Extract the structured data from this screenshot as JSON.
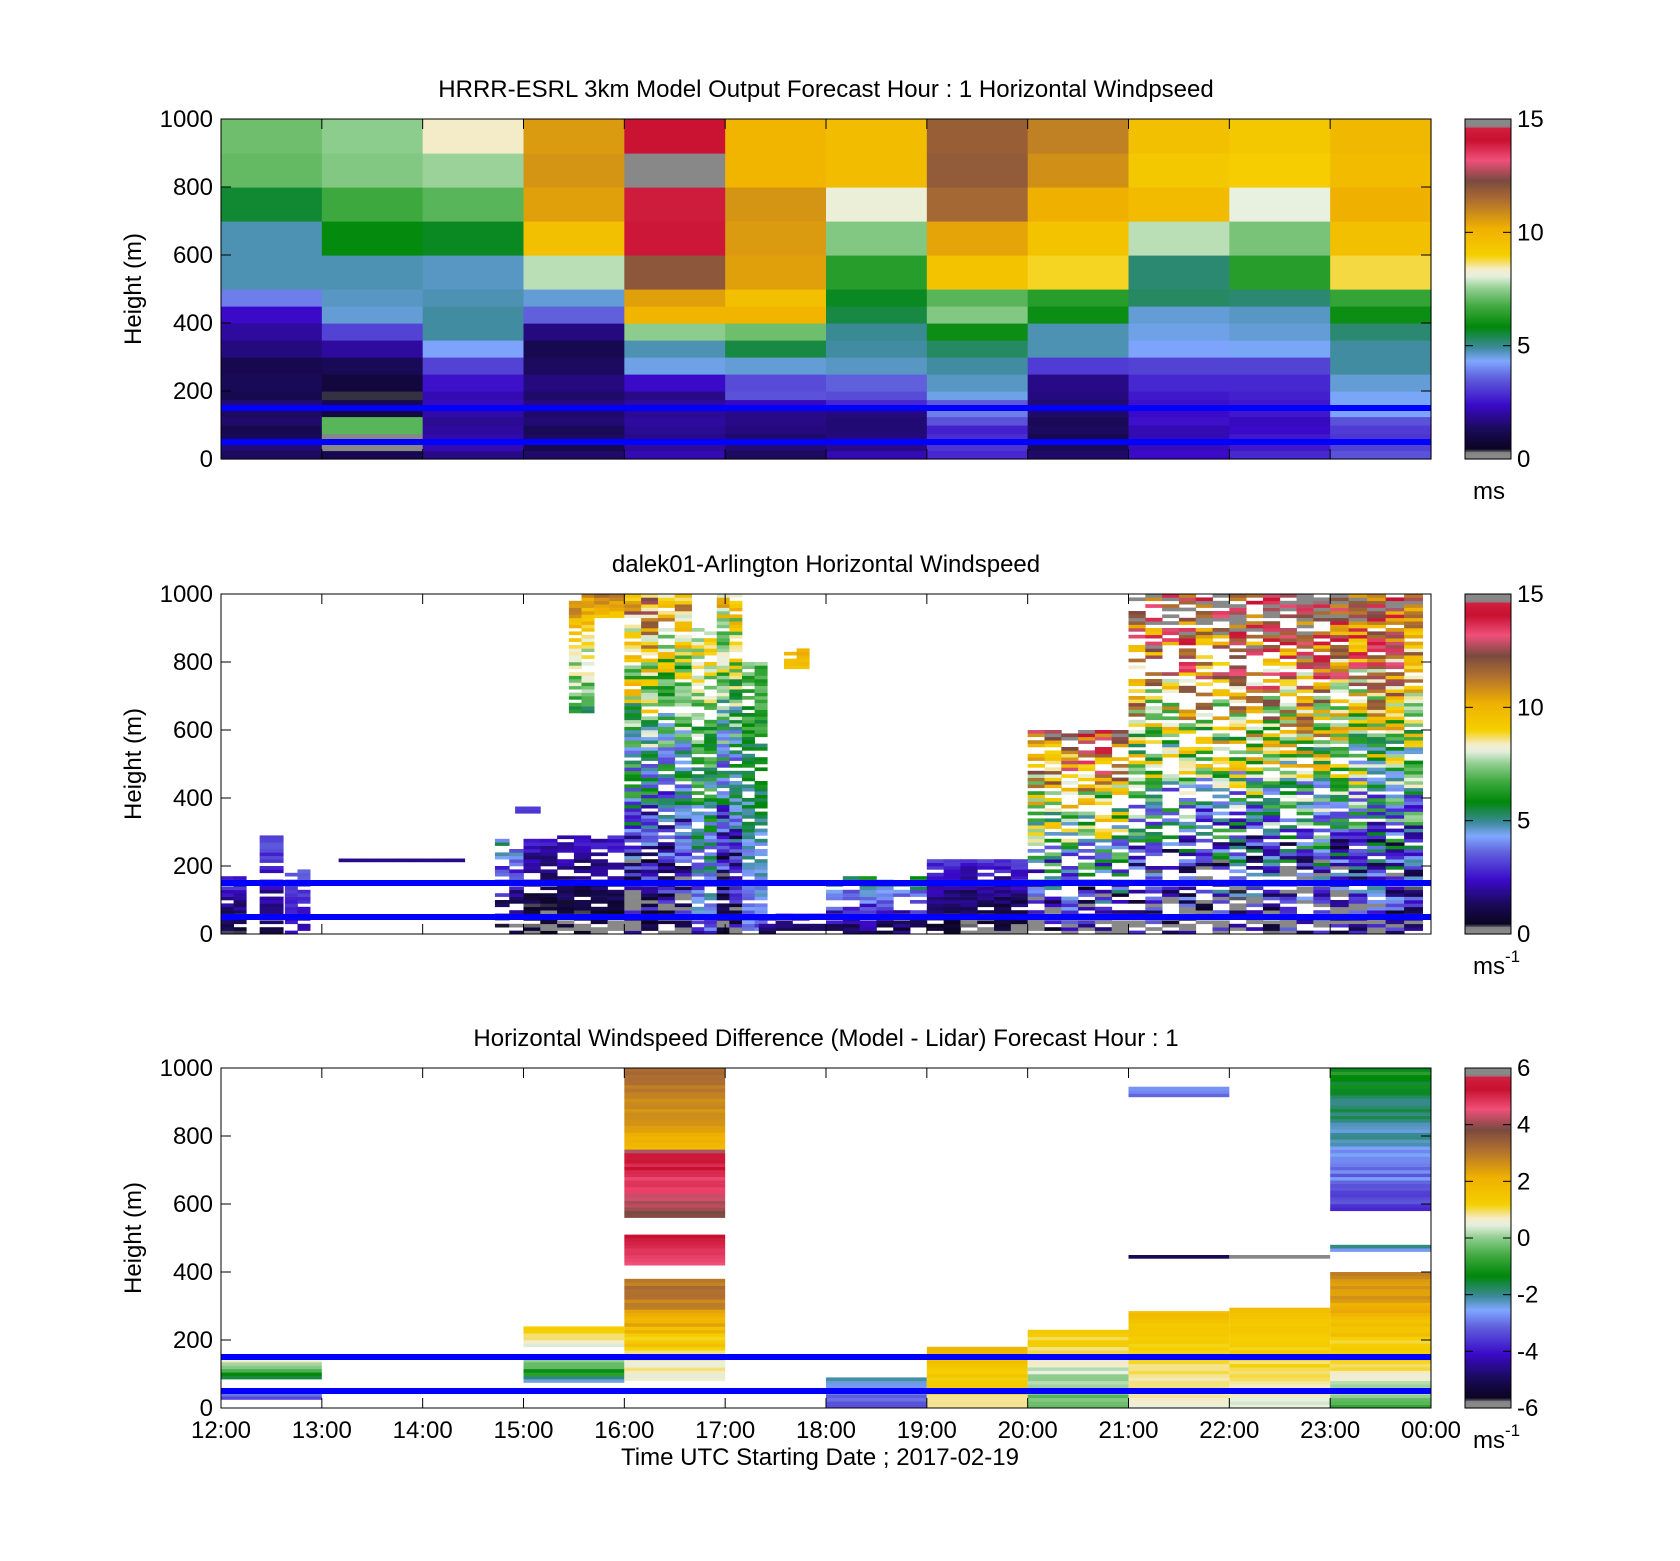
{
  "figure": {
    "xlabel": "Time UTC  Starting Date ; 2017-02-19"
  },
  "chart_data": [
    {
      "type": "heatmap",
      "title": "HRRR-ESRL 3km Model Output   Forecast Hour : 1 Horizontal Windpseed",
      "ylabel": "Height (m)",
      "unit": "ms",
      "ylim": [
        0,
        1000
      ],
      "yticks": [
        "0",
        "200",
        "400",
        "600",
        "800",
        "1000"
      ],
      "xticks": [
        "12:00",
        "13:00",
        "14:00",
        "15:00",
        "16:00",
        "17:00",
        "18:00",
        "19:00",
        "20:00",
        "21:00",
        "22:00",
        "23:00",
        "00:00"
      ],
      "xticks_labeled": false,
      "clim": [
        0,
        15
      ],
      "cticks": [
        "0",
        "5",
        "10",
        "15"
      ],
      "colormap": "wind",
      "hlines": [
        150,
        50
      ],
      "hline_color": "#0000ff",
      "hour_starts": [
        0,
        1,
        2,
        3,
        4,
        5,
        6,
        7,
        8,
        9,
        10,
        11
      ],
      "level_edges": [
        0,
        25,
        50,
        75,
        100,
        125,
        150,
        175,
        200,
        250,
        300,
        350,
        400,
        450,
        500,
        600,
        700,
        800,
        900,
        1000
      ],
      "values": [
        [
          1.4,
          1.2,
          1.8,
          1.5,
          2.2,
          1.4,
          2.2,
          2.8,
          1.5,
          2.4,
          2.8,
          3.4
        ],
        [
          1.6,
          0.3,
          2.2,
          1.2,
          2.0,
          1.6,
          1.8,
          3.0,
          1.3,
          2.3,
          2.6,
          3.2
        ],
        [
          1.3,
          0.3,
          2.1,
          1.4,
          1.8,
          1.5,
          1.7,
          2.9,
          1.2,
          2.2,
          2.6,
          3.0
        ],
        [
          1.2,
          7.0,
          2.0,
          1.3,
          1.9,
          1.7,
          1.6,
          2.7,
          1.4,
          2.2,
          2.4,
          3.1
        ],
        [
          1.5,
          7.0,
          1.9,
          1.6,
          2.0,
          1.8,
          1.6,
          3.4,
          1.3,
          2.5,
          2.3,
          3.4
        ],
        [
          1.4,
          1.0,
          2.1,
          1.5,
          1.9,
          1.8,
          1.7,
          3.9,
          1.5,
          2.4,
          2.6,
          4.3
        ],
        [
          1.6,
          1.2,
          2.3,
          1.7,
          2.0,
          2.3,
          2.8,
          3.5,
          1.6,
          2.5,
          2.6,
          4.4
        ],
        [
          1.2,
          0.4,
          2.2,
          1.5,
          1.8,
          3.4,
          3.3,
          4.5,
          1.7,
          2.6,
          2.7,
          4.4
        ],
        [
          1.3,
          0.9,
          2.5,
          1.7,
          2.4,
          3.3,
          3.6,
          4.7,
          1.8,
          2.8,
          2.8,
          4.6
        ],
        [
          1.2,
          1.3,
          3.2,
          1.4,
          4.5,
          4.6,
          4.7,
          4.9,
          3.1,
          3.2,
          3.2,
          4.9
        ],
        [
          1.7,
          2.0,
          4.3,
          1.2,
          4.8,
          5.5,
          4.9,
          5.3,
          4.8,
          4.3,
          4.4,
          4.9
        ],
        [
          2.0,
          3.2,
          4.9,
          1.7,
          7.5,
          7.2,
          5.0,
          6.0,
          4.8,
          4.5,
          4.6,
          5.2
        ],
        [
          2.4,
          4.6,
          4.9,
          3.6,
          10.0,
          10.0,
          5.5,
          7.4,
          6.0,
          4.6,
          4.7,
          6.0
        ],
        [
          3.9,
          4.7,
          4.8,
          4.6,
          10.5,
          9.6,
          5.7,
          7.0,
          6.4,
          5.3,
          5.2,
          6.6
        ],
        [
          4.8,
          4.8,
          4.7,
          7.8,
          12.0,
          10.5,
          6.4,
          9.5,
          8.9,
          5.2,
          6.4,
          8.8
        ],
        [
          4.8,
          5.9,
          5.7,
          9.6,
          14.0,
          10.6,
          7.4,
          10.4,
          9.5,
          7.8,
          7.3,
          9.6
        ],
        [
          5.6,
          6.7,
          7.0,
          10.5,
          14.5,
          10.7,
          8.2,
          11.6,
          10.2,
          9.8,
          8.1,
          10.2
        ],
        [
          7.1,
          7.4,
          7.6,
          10.7,
          14.8,
          10.0,
          9.7,
          11.9,
          10.8,
          9.3,
          9.1,
          9.8
        ],
        [
          7.2,
          7.5,
          8.4,
          10.6,
          14.2,
          10.0,
          9.7,
          11.8,
          11.1,
          9.6,
          9.3,
          9.9
        ]
      ]
    },
    {
      "type": "heatmap",
      "title": "dalek01-Arlington  Horizontal Windspeed",
      "ylabel": "Height (m)",
      "unit": "ms",
      "unit_exp": "-1",
      "ylim": [
        0,
        1000
      ],
      "yticks": [
        "0",
        "200",
        "400",
        "600",
        "800",
        "1000"
      ],
      "xticks": [
        "12:00",
        "13:00",
        "14:00",
        "15:00",
        "16:00",
        "17:00",
        "18:00",
        "19:00",
        "20:00",
        "21:00",
        "22:00",
        "23:00",
        "00:00"
      ],
      "xticks_labeled": false,
      "clim": [
        0,
        15
      ],
      "cticks": [
        "0",
        "5",
        "10",
        "15"
      ],
      "colormap": "wind",
      "hlines": [
        150,
        50
      ],
      "hline_color": "#0000ff",
      "observation_regions": [
        {
          "start": "12:00",
          "end": "12:15",
          "top_m": 170,
          "speed_range": [
            0.6,
            3.2
          ],
          "fill": 0.85
        },
        {
          "start": "12:23",
          "end": "12:37",
          "top_m": 290,
          "speed_range": [
            1.2,
            3.4
          ],
          "fill": 0.75
        },
        {
          "start": "12:38",
          "end": "12:53",
          "top_m": 185,
          "speed_range": [
            2.2,
            3.5
          ],
          "fill": 0.75
        },
        {
          "start": "13:10",
          "end": "14:25",
          "top_m": 222,
          "bottom_m": 212,
          "speed_range": [
            1.8,
            2.0
          ],
          "fill": 1.0
        },
        {
          "start": "14:55",
          "end": "15:10",
          "top_m": 370,
          "bottom_m": 355,
          "speed_range": [
            3.0,
            3.2
          ],
          "fill": 1.0
        },
        {
          "start": "14:43",
          "end": "15:00",
          "top_m": 280,
          "speed_range": [
            0.3,
            5.0
          ],
          "fill": 0.7
        },
        {
          "start": "15:00",
          "end": "16:00",
          "top_m": 290,
          "speed_range": [
            0.2,
            2.6
          ],
          "fill": 0.8
        },
        {
          "start": "15:27",
          "end": "15:42",
          "top_m": 1000,
          "bottom_m": 650,
          "speed_range": [
            6.0,
            11.0
          ],
          "fill": 0.8
        },
        {
          "start": "15:42",
          "end": "16:00",
          "top_m": 1000,
          "bottom_m": 930,
          "speed_range": [
            9.5,
            11.5
          ],
          "fill": 0.9
        },
        {
          "start": "16:00",
          "end": "16:20",
          "top_m": 1000,
          "speed_range": [
            0.3,
            11.0
          ],
          "fill": 0.92
        },
        {
          "start": "16:20",
          "end": "16:40",
          "top_m": 1000,
          "speed_range": [
            0.5,
            10.0
          ],
          "fill": 0.85
        },
        {
          "start": "16:40",
          "end": "16:55",
          "top_m": 900,
          "speed_range": [
            3.0,
            9.0
          ],
          "fill": 0.75
        },
        {
          "start": "16:55",
          "end": "17:10",
          "top_m": 1000,
          "speed_range": [
            0.5,
            9.5
          ],
          "fill": 0.9
        },
        {
          "start": "17:10",
          "end": "17:25",
          "top_m": 800,
          "speed_range": [
            3.5,
            7.0
          ],
          "fill": 0.8
        },
        {
          "start": "17:20",
          "end": "18:00",
          "top_m": 60,
          "speed_range": [
            1.0,
            3.0
          ],
          "fill": 0.7
        },
        {
          "start": "17:35",
          "end": "17:50",
          "top_m": 850,
          "bottom_m": 780,
          "speed_range": [
            9.5,
            10.5
          ],
          "fill": 0.8
        },
        {
          "start": "18:00",
          "end": "19:00",
          "top_m": 170,
          "speed_range": [
            1.2,
            5.5
          ],
          "fill": 0.8
        },
        {
          "start": "19:00",
          "end": "20:00",
          "top_m": 220,
          "speed_range": [
            0.2,
            3.0
          ],
          "fill": 0.85
        },
        {
          "start": "20:00",
          "end": "21:00",
          "top_m": 600,
          "speed_range": [
            0.3,
            13.0
          ],
          "fill": 0.7
        },
        {
          "start": "21:00",
          "end": "22:00",
          "top_m": 1000,
          "speed_range": [
            0.3,
            14.0
          ],
          "fill": 0.6
        },
        {
          "start": "22:00",
          "end": "23:00",
          "top_m": 1000,
          "speed_range": [
            0.3,
            14.5
          ],
          "fill": 0.75
        },
        {
          "start": "23:00",
          "end": "23:55",
          "top_m": 1000,
          "speed_range": [
            0.3,
            13.5
          ],
          "fill": 0.9
        }
      ]
    },
    {
      "type": "heatmap",
      "title": "Horizontal Windspeed Difference (Model - Lidar) Forecast Hour : 1",
      "ylabel": "Height (m)",
      "xlabel": "Time UTC  Starting Date ; 2017-02-19",
      "unit": "ms",
      "unit_exp": "-1",
      "ylim": [
        0,
        1000
      ],
      "yticks": [
        "0",
        "200",
        "400",
        "600",
        "800",
        "1000"
      ],
      "xticks": [
        "12:00",
        "13:00",
        "14:00",
        "15:00",
        "16:00",
        "17:00",
        "18:00",
        "19:00",
        "20:00",
        "21:00",
        "22:00",
        "23:00",
        "00:00"
      ],
      "xticks_labeled": true,
      "clim": [
        -6,
        6
      ],
      "cticks": [
        "-6",
        "-4",
        "-2",
        "0",
        "2",
        "4",
        "6"
      ],
      "colormap": "wind",
      "hlines": [
        150,
        50
      ],
      "hline_color": "#0000ff",
      "difference_regions": [
        {
          "start": "12:00",
          "end": "13:00",
          "top_m": 140,
          "bottom_m": 85,
          "value_range": [
            -1.5,
            1.0
          ]
        },
        {
          "start": "12:00",
          "end": "13:00",
          "top_m": 55,
          "bottom_m": 25,
          "value_range": [
            -3.5,
            -1.0
          ]
        },
        {
          "start": "15:00",
          "end": "16:00",
          "top_m": 240,
          "bottom_m": 180,
          "value_range": [
            0.5,
            1.5
          ]
        },
        {
          "start": "15:00",
          "end": "16:00",
          "top_m": 150,
          "bottom_m": 75,
          "value_range": [
            -2.0,
            0.8
          ]
        },
        {
          "start": "16:00",
          "end": "17:00",
          "top_m": 1000,
          "bottom_m": 760,
          "value_range": [
            2.0,
            3.4
          ]
        },
        {
          "start": "16:00",
          "end": "17:00",
          "top_m": 760,
          "bottom_m": 560,
          "value_range": [
            4.0,
            5.6
          ]
        },
        {
          "start": "16:00",
          "end": "17:00",
          "top_m": 510,
          "bottom_m": 420,
          "value_range": [
            4.5,
            5.5
          ]
        },
        {
          "start": "16:00",
          "end": "17:00",
          "top_m": 380,
          "bottom_m": 80,
          "value_range": [
            0.3,
            3.5
          ]
        },
        {
          "start": "18:00",
          "end": "19:00",
          "top_m": 90,
          "bottom_m": 0,
          "value_range": [
            -3.5,
            -2.0
          ]
        },
        {
          "start": "19:00",
          "end": "20:00",
          "top_m": 180,
          "bottom_m": 0,
          "value_range": [
            0.8,
            2.0
          ]
        },
        {
          "start": "20:00",
          "end": "21:00",
          "top_m": 230,
          "bottom_m": 0,
          "value_range": [
            -0.5,
            1.5
          ]
        },
        {
          "start": "21:00",
          "end": "22:00",
          "top_m": 945,
          "bottom_m": 915,
          "value_range": [
            -3.0,
            -2.5
          ]
        },
        {
          "start": "21:00",
          "end": "22:00",
          "top_m": 450,
          "bottom_m": 440,
          "value_range": [
            -5.0,
            -5.0
          ]
        },
        {
          "start": "21:00",
          "end": "22:00",
          "top_m": 285,
          "bottom_m": 0,
          "value_range": [
            0.5,
            1.8
          ]
        },
        {
          "start": "22:00",
          "end": "23:00",
          "top_m": 450,
          "bottom_m": 440,
          "value_range": [
            6.0,
            6.0
          ]
        },
        {
          "start": "22:00",
          "end": "23:00",
          "top_m": 295,
          "bottom_m": 0,
          "value_range": [
            0.5,
            1.8
          ]
        },
        {
          "start": "23:00",
          "end": "00:00",
          "top_m": 1000,
          "bottom_m": 580,
          "value_range": [
            -3.5,
            -1.0
          ]
        },
        {
          "start": "23:00",
          "end": "00:00",
          "top_m": 480,
          "bottom_m": 460,
          "value_range": [
            -2.5,
            -1.5
          ]
        },
        {
          "start": "23:00",
          "end": "00:00",
          "top_m": 400,
          "bottom_m": 150,
          "value_range": [
            1.0,
            3.0
          ]
        },
        {
          "start": "23:00",
          "end": "00:00",
          "top_m": 150,
          "bottom_m": 0,
          "value_range": [
            -0.5,
            1.5
          ]
        }
      ]
    }
  ]
}
